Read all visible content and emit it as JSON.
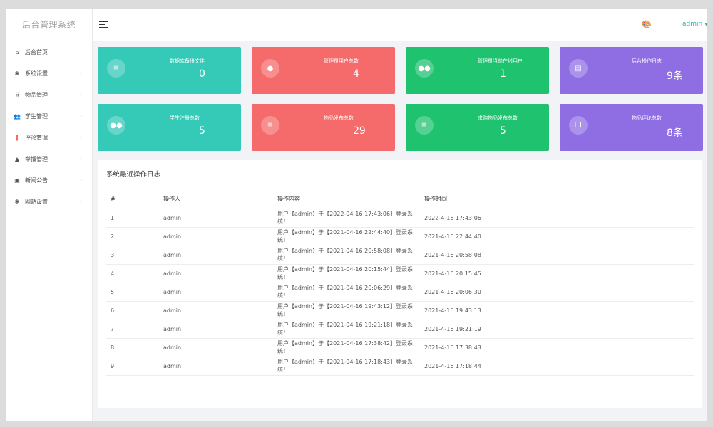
{
  "brand": "后台管理系统",
  "sidebar": {
    "items": [
      {
        "label": "后台首页",
        "icon": "home-icon",
        "glyph": "⌂",
        "arrow": ""
      },
      {
        "label": "系统设置",
        "icon": "gear-icon",
        "glyph": "✱",
        "arrow": "›"
      },
      {
        "label": "物品管理",
        "icon": "grid-icon",
        "glyph": "⠿",
        "arrow": "›"
      },
      {
        "label": "学生管理",
        "icon": "users-icon",
        "glyph": "👥",
        "arrow": "›"
      },
      {
        "label": "评论管理",
        "icon": "comment-icon",
        "glyph": "❗",
        "arrow": "›"
      },
      {
        "label": "举报管理",
        "icon": "warning-icon",
        "glyph": "▲",
        "arrow": "›"
      },
      {
        "label": "新闻公告",
        "icon": "news-icon",
        "glyph": "▣",
        "arrow": "›"
      },
      {
        "label": "网站设置",
        "icon": "settings-icon",
        "glyph": "✱",
        "arrow": "›"
      }
    ]
  },
  "topbar": {
    "user": "admin",
    "palette_glyph": "🎨"
  },
  "cards": [
    {
      "label": "数据库备份文件",
      "value": "0",
      "color": "#35c9b7",
      "icon": "database-icon",
      "glyph": "≣"
    },
    {
      "label": "管理员用户总数",
      "value": "4",
      "color": "#f56a6a",
      "icon": "user-icon",
      "glyph": "●"
    },
    {
      "label": "管理员当前在线用户",
      "value": "1",
      "color": "#1fc26f",
      "icon": "users-icon",
      "glyph": "●●"
    },
    {
      "label": "后台操作日志",
      "value": "9条",
      "color": "#8f6ee3",
      "icon": "log-icon",
      "glyph": "▤"
    },
    {
      "label": "学生注册总数",
      "value": "5",
      "color": "#35c9b7",
      "icon": "users-icon",
      "glyph": "●●"
    },
    {
      "label": "物品发布总数",
      "value": "29",
      "color": "#f56a6a",
      "icon": "database-icon",
      "glyph": "≣"
    },
    {
      "label": "求购物品发布总数",
      "value": "5",
      "color": "#1fc26f",
      "icon": "database-icon",
      "glyph": "≣"
    },
    {
      "label": "物品评论总数",
      "value": "8条",
      "color": "#8f6ee3",
      "icon": "comment-icon",
      "glyph": "❐"
    }
  ],
  "log": {
    "title": "系统最近操作日志",
    "headers": [
      "#",
      "操作人",
      "操作内容",
      "操作时间"
    ],
    "rows": [
      [
        "1",
        "admin",
        "用户【admin】于【2022-04-16 17:43:06】登录系统！",
        "2022-4-16 17:43:06"
      ],
      [
        "2",
        "admin",
        "用户【admin】于【2021-04-16 22:44:40】登录系统！",
        "2021-4-16 22:44:40"
      ],
      [
        "3",
        "admin",
        "用户【admin】于【2021-04-16 20:58:08】登录系统！",
        "2021-4-16 20:58:08"
      ],
      [
        "4",
        "admin",
        "用户【admin】于【2021-04-16 20:15:44】登录系统！",
        "2021-4-16 20:15:45"
      ],
      [
        "5",
        "admin",
        "用户【admin】于【2021-04-16 20:06:29】登录系统！",
        "2021-4-16 20:06:30"
      ],
      [
        "6",
        "admin",
        "用户【admin】于【2021-04-16 19:43:12】登录系统！",
        "2021-4-16 19:43:13"
      ],
      [
        "7",
        "admin",
        "用户【admin】于【2021-04-16 19:21:18】登录系统！",
        "2021-4-16 19:21:19"
      ],
      [
        "8",
        "admin",
        "用户【admin】于【2021-04-16 17:38:42】登录系统！",
        "2021-4-16 17:38:43"
      ],
      [
        "9",
        "admin",
        "用户【admin】于【2021-04-16 17:18:43】登录系统！",
        "2021-4-16 17:18:44"
      ]
    ]
  }
}
